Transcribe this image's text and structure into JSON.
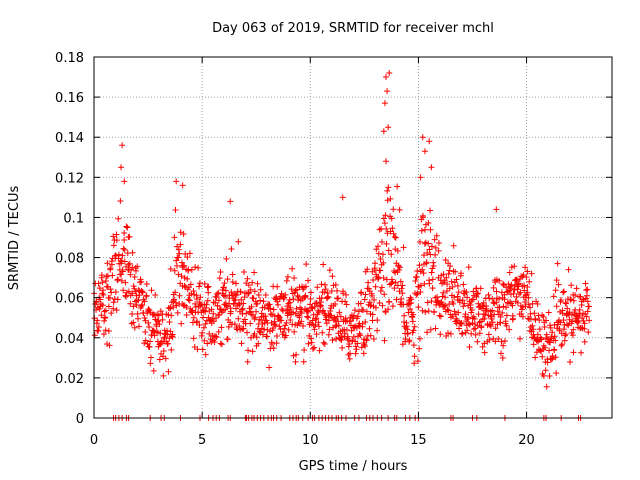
{
  "chart_data": {
    "type": "scatter",
    "title": "Day 063 of 2019, SRMTID for receiver mchl",
    "xlabel": "GPS time / hours",
    "ylabel": "SRMTID / TECUs",
    "xlim": [
      0,
      23.95
    ],
    "ylim": [
      0,
      0.18
    ],
    "xticks": [
      0,
      5,
      10,
      15,
      20
    ],
    "yticks": [
      0,
      0.02,
      0.04,
      0.06,
      0.08,
      0.1,
      0.12,
      0.14,
      0.16,
      0.18
    ],
    "ytick_labels": [
      "0",
      "0.02",
      "0.04",
      "0.06",
      "0.08",
      "0.1",
      "0.12",
      "0.14",
      "0.16",
      "0.18"
    ],
    "grid": true,
    "marker": "+",
    "series_color": "#ff0000",
    "envelope": {
      "x": [
        0.0,
        0.5,
        0.8,
        1.0,
        1.3,
        1.6,
        2.0,
        2.5,
        3.0,
        3.4,
        3.8,
        4.2,
        4.6,
        5.0,
        5.5,
        6.0,
        6.4,
        7.0,
        7.5,
        8.0,
        8.5,
        9.0,
        9.5,
        10.0,
        10.5,
        11.0,
        11.5,
        12.0,
        12.5,
        13.0,
        13.4,
        13.7,
        14.0,
        14.4,
        14.8,
        15.2,
        15.6,
        16.0,
        16.5,
        17.0,
        17.5,
        18.0,
        18.5,
        19.0,
        19.5,
        20.0,
        20.3,
        20.6,
        21.0,
        21.4,
        21.8,
        22.2,
        22.6,
        22.9
      ],
      "center": [
        0.055,
        0.06,
        0.07,
        0.075,
        0.08,
        0.07,
        0.06,
        0.05,
        0.045,
        0.04,
        0.07,
        0.07,
        0.06,
        0.055,
        0.05,
        0.06,
        0.06,
        0.055,
        0.05,
        0.05,
        0.05,
        0.055,
        0.05,
        0.05,
        0.055,
        0.055,
        0.045,
        0.045,
        0.05,
        0.065,
        0.075,
        0.09,
        0.07,
        0.05,
        0.05,
        0.075,
        0.08,
        0.06,
        0.06,
        0.055,
        0.05,
        0.05,
        0.055,
        0.055,
        0.06,
        0.065,
        0.045,
        0.04,
        0.035,
        0.045,
        0.05,
        0.05,
        0.05,
        0.055
      ],
      "spread": [
        0.015,
        0.02,
        0.025,
        0.025,
        0.025,
        0.02,
        0.02,
        0.017,
        0.015,
        0.015,
        0.025,
        0.022,
        0.018,
        0.015,
        0.015,
        0.018,
        0.017,
        0.015,
        0.015,
        0.015,
        0.015,
        0.017,
        0.017,
        0.017,
        0.017,
        0.017,
        0.015,
        0.015,
        0.018,
        0.022,
        0.025,
        0.035,
        0.03,
        0.02,
        0.018,
        0.03,
        0.03,
        0.02,
        0.02,
        0.017,
        0.017,
        0.017,
        0.018,
        0.017,
        0.018,
        0.015,
        0.015,
        0.015,
        0.015,
        0.015,
        0.015,
        0.015,
        0.015,
        0.015
      ]
    },
    "n_points": 1500,
    "peaks": [
      {
        "x": 1.3,
        "y": 0.136
      },
      {
        "x": 1.25,
        "y": 0.125
      },
      {
        "x": 1.4,
        "y": 0.118
      },
      {
        "x": 3.8,
        "y": 0.118
      },
      {
        "x": 4.1,
        "y": 0.116
      },
      {
        "x": 6.3,
        "y": 0.108
      },
      {
        "x": 11.5,
        "y": 0.11
      },
      {
        "x": 13.5,
        "y": 0.17
      },
      {
        "x": 13.65,
        "y": 0.172
      },
      {
        "x": 13.55,
        "y": 0.163
      },
      {
        "x": 13.45,
        "y": 0.157
      },
      {
        "x": 13.6,
        "y": 0.145
      },
      {
        "x": 13.4,
        "y": 0.143
      },
      {
        "x": 13.5,
        "y": 0.128
      },
      {
        "x": 15.2,
        "y": 0.14
      },
      {
        "x": 15.5,
        "y": 0.138
      },
      {
        "x": 15.3,
        "y": 0.133
      },
      {
        "x": 15.6,
        "y": 0.125
      },
      {
        "x": 15.1,
        "y": 0.12
      },
      {
        "x": 18.6,
        "y": 0.104
      }
    ],
    "zero_points_x": [
      0.9,
      1.0,
      1.15,
      1.3,
      1.5,
      1.6,
      2.6,
      3.1,
      3.25,
      4.0,
      4.9,
      5.3,
      5.5,
      5.65,
      5.8,
      6.2,
      6.3,
      7.0,
      7.05,
      7.15,
      7.3,
      7.4,
      7.55,
      7.7,
      7.85,
      8.05,
      8.2,
      8.3,
      8.45,
      8.65,
      9.05,
      9.2,
      9.35,
      9.45,
      9.65,
      9.9,
      10.1,
      10.2,
      10.4,
      10.55,
      10.7,
      10.85,
      11.0,
      11.2,
      11.3,
      11.45,
      11.65,
      12.05,
      12.25,
      12.6,
      12.75,
      12.9,
      13.1,
      13.3,
      13.6,
      13.9,
      14.0,
      14.4,
      14.6,
      14.85,
      15.0,
      16.5,
      16.6,
      17.5,
      17.7,
      19.0,
      20.8,
      20.9,
      21.6,
      22.4,
      22.5
    ]
  }
}
